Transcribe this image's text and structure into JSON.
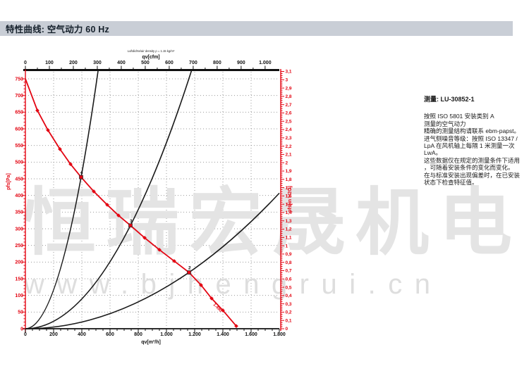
{
  "page": {
    "title_bar": "特性曲线: 空气动力 60 Hz"
  },
  "info_panel": {
    "measurement_label": "测量: LU-30852-1",
    "lines": [
      "按照 ISO 5801 安装类别 A",
      "测量的空气动力",
      "精确的测量结构请联系 ebm-papst。",
      "进气侧噪音等级：按照 ISO 13347 /",
      "LpA 在风机轴上每隔 1 米测量一次",
      "LwA。",
      "这些数据仅在规定的测量条件下适用",
      "，可随着安装条件的变化而变化。",
      "在与标准安装出现偏差时，在已安装",
      "状态下检查特征值。"
    ]
  },
  "watermark": {
    "main": "恒瑞宏晟机电",
    "url": "www.bjhengrui.cn"
  },
  "chart_data": {
    "type": "line",
    "top_note": "Luftdichte/air density ρ = 1.15 kg/m³",
    "axes": {
      "top": {
        "label": "qv[cfm]",
        "min": 0,
        "max": 1059,
        "tick_step": 100,
        "tick_max": 1000
      },
      "bottom": {
        "label": "qv[m³/h]",
        "min": 0,
        "max": 1800,
        "tick_step": 200
      },
      "left": {
        "label": "pfs[Pa]",
        "min": 0,
        "max": 750,
        "tick_step": 50
      },
      "right": {
        "label": "pfs[in H2O]",
        "min": 0,
        "max": 3.1,
        "tick_step": 0.1
      }
    },
    "grid": {
      "vertical_step_m3h": 200,
      "horizontal_step_pa": 50,
      "style": "dotted"
    },
    "colors": {
      "accent_red": "#e30613",
      "curve_black": "#1a1a1a",
      "grid": "#999999",
      "watermark": "#e4e4e4",
      "watermark_url": "#dedede",
      "title_bar_bg": "#c9ced6"
    },
    "fan_curve": {
      "name": "aerodynamic characteristic 60 Hz",
      "points": [
        [
          0,
          750
        ],
        [
          85,
          655
        ],
        [
          160,
          596
        ],
        [
          245,
          539
        ],
        [
          320,
          494
        ],
        [
          395,
          455
        ],
        [
          485,
          412
        ],
        [
          580,
          372
        ],
        [
          660,
          340
        ],
        [
          745,
          310
        ],
        [
          845,
          273
        ],
        [
          950,
          237
        ],
        [
          1055,
          203
        ],
        [
          1160,
          169
        ],
        [
          1245,
          131
        ],
        [
          1320,
          91
        ],
        [
          1400,
          55
        ],
        [
          1495,
          8
        ]
      ],
      "end_label": "1.490"
    },
    "operating_points": [
      {
        "label": "4",
        "q": 395,
        "p": 455
      },
      {
        "label": "3",
        "q": 745,
        "p": 310
      },
      {
        "label": "2",
        "q": 1160,
        "p": 169
      }
    ],
    "system_curves": [
      {
        "through_q": 395,
        "through_p": 455
      },
      {
        "through_q": 745,
        "through_p": 310
      },
      {
        "through_q": 1160,
        "through_p": 169
      }
    ]
  }
}
